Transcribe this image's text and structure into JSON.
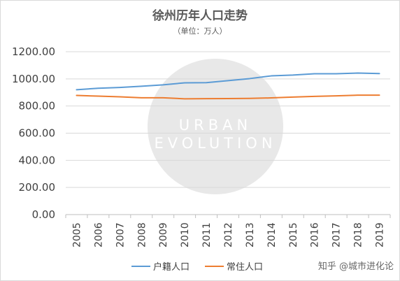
{
  "chart_data": {
    "type": "line",
    "title": "徐州历年人口走势",
    "subtitle": "（单位：万人）",
    "x": [
      "2005",
      "2006",
      "2007",
      "2008",
      "2009",
      "2010",
      "2011",
      "2012",
      "2013",
      "2014",
      "2015",
      "2016",
      "2017",
      "2018",
      "2019"
    ],
    "ylim": [
      0,
      1200
    ],
    "yticks": [
      "0.00",
      "200.00",
      "400.00",
      "600.00",
      "800.00",
      "1000.00",
      "1200.00"
    ],
    "grid": true,
    "legend_position": "bottom",
    "series": [
      {
        "name": "户籍人口",
        "color": "#5b9bd5",
        "values": [
          920,
          931,
          937,
          946,
          956,
          971,
          972,
          987,
          1002,
          1022,
          1028,
          1038,
          1038,
          1043,
          1039
        ]
      },
      {
        "name": "常住人口",
        "color": "#ed7d31",
        "values": [
          878,
          873,
          868,
          861,
          861,
          853,
          854,
          855,
          856,
          860,
          866,
          871,
          875,
          880,
          880
        ]
      }
    ]
  },
  "watermark": {
    "lines": [
      "URBAN",
      "EVOLUTION"
    ]
  },
  "credit": "知乎 @城市进化论"
}
